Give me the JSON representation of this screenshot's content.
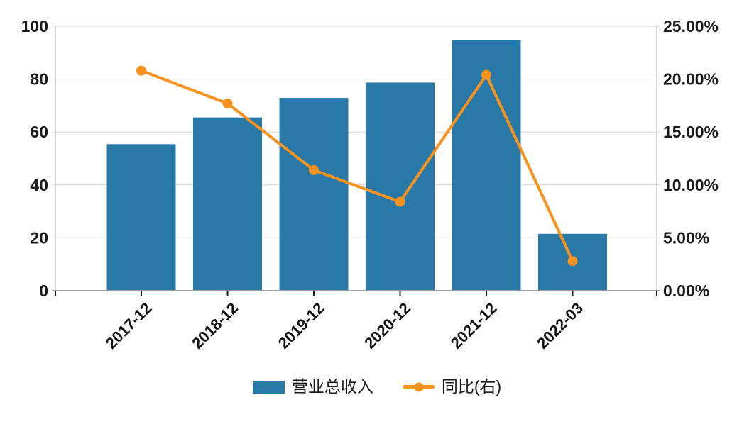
{
  "chart_data": {
    "type": "bar",
    "title": "",
    "xlabel": "",
    "ylabel": "",
    "categories": [
      "2017-12",
      "2018-12",
      "2019-12",
      "2020-12",
      "2021-12",
      "2022-03"
    ],
    "series": [
      {
        "name": "营业总收入",
        "type": "bar",
        "y_axis": "left",
        "color": "#2878a8",
        "values": [
          55.4,
          65.5,
          72.9,
          78.7,
          94.7,
          21.5
        ]
      },
      {
        "name": "同比(右)",
        "type": "line",
        "y_axis": "right",
        "color": "#f6921e",
        "values": [
          20.8,
          17.7,
          11.4,
          8.4,
          20.4,
          2.8
        ]
      }
    ],
    "left_axis": {
      "min": 0,
      "max": 100,
      "tick_values": [
        0,
        20,
        40,
        60,
        80,
        100
      ],
      "tick_labels": [
        "0",
        "20",
        "40",
        "60",
        "80",
        "100"
      ]
    },
    "right_axis": {
      "min": 0,
      "max": 25,
      "tick_values": [
        0,
        5,
        10,
        15,
        20,
        25
      ],
      "tick_labels": [
        "0.00%",
        "5.00%",
        "10.00%",
        "15.00%",
        "20.00%",
        "25.00%"
      ]
    },
    "grid": true,
    "legend_position": "bottom"
  },
  "colors": {
    "bar": "#2878a8",
    "line": "#f6921e",
    "grid": "#d4d4d4",
    "axis_side": "#c6c6c6",
    "axis_bottom": "#9e9e9e",
    "tick_mark": "#1a1a1a",
    "text": "#1a1a1a",
    "background": "#ffffff"
  }
}
